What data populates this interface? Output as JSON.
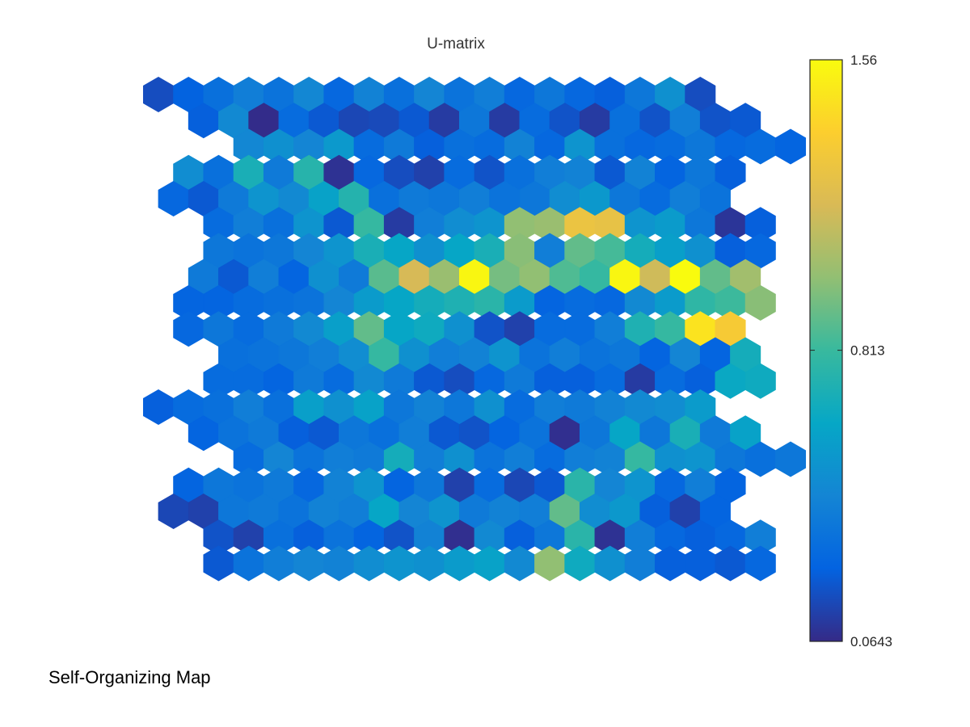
{
  "footer_label": "Self-Organizing Map",
  "chart_data": {
    "type": "heatmap",
    "title": "U-matrix",
    "grid": "hexagonal",
    "rows": 19,
    "cols": 21,
    "colorbar": {
      "colormap": "parula",
      "min": 0.0643,
      "max": 1.56,
      "ticks": [
        0.0643,
        0.813,
        1.56
      ],
      "tick_labels": [
        "0.0643",
        "0.813",
        "1.56"
      ]
    },
    "values": [
      [
        0.18,
        0.25,
        0.32,
        0.4,
        0.34,
        0.45,
        0.28,
        0.42,
        0.32,
        0.44,
        0.34,
        0.4,
        0.28,
        0.36,
        0.28,
        0.24,
        0.36,
        0.5,
        0.18,
        null,
        null
      ],
      [
        null,
        0.24,
        0.46,
        0.07,
        0.3,
        0.22,
        0.16,
        0.17,
        0.22,
        0.12,
        0.36,
        0.12,
        0.3,
        0.2,
        0.12,
        0.32,
        0.2,
        0.4,
        0.2,
        0.22,
        null
      ],
      [
        null,
        null,
        0.45,
        0.5,
        0.44,
        0.55,
        0.3,
        0.38,
        0.24,
        0.32,
        0.3,
        0.42,
        0.28,
        0.52,
        0.32,
        0.28,
        0.3,
        0.36,
        0.28,
        0.3,
        0.26
      ],
      [
        null,
        0.48,
        0.32,
        0.7,
        0.38,
        0.75,
        0.09,
        0.28,
        0.18,
        0.14,
        0.3,
        0.2,
        0.32,
        0.4,
        0.42,
        0.22,
        0.42,
        0.26,
        0.36,
        0.24,
        null
      ],
      [
        0.28,
        0.22,
        0.38,
        0.52,
        0.46,
        0.6,
        0.74,
        0.32,
        0.38,
        0.36,
        0.4,
        0.34,
        0.36,
        0.48,
        0.54,
        0.36,
        0.3,
        0.4,
        0.34,
        null,
        null
      ],
      [
        null,
        0.3,
        0.4,
        0.32,
        0.52,
        0.22,
        0.8,
        0.12,
        0.4,
        0.48,
        0.52,
        1.0,
        1.02,
        1.28,
        1.26,
        0.52,
        0.56,
        0.36,
        0.1,
        0.24,
        null
      ],
      [
        null,
        null,
        0.36,
        0.34,
        0.36,
        0.44,
        0.52,
        0.7,
        0.62,
        0.5,
        0.62,
        0.7,
        0.98,
        0.4,
        0.9,
        0.84,
        0.68,
        0.58,
        0.5,
        0.24,
        0.28
      ],
      [
        null,
        0.38,
        0.22,
        0.4,
        0.26,
        0.5,
        0.38,
        0.88,
        1.18,
        1.02,
        1.54,
        0.94,
        1.0,
        0.86,
        0.8,
        1.54,
        1.16,
        1.56,
        0.9,
        1.04,
        null
      ],
      [
        0.26,
        0.26,
        0.3,
        0.32,
        0.34,
        0.44,
        0.56,
        0.62,
        0.68,
        0.72,
        0.76,
        0.56,
        0.26,
        0.3,
        0.28,
        0.46,
        0.56,
        0.78,
        0.82,
        0.98,
        null
      ],
      [
        null,
        0.28,
        0.36,
        0.3,
        0.38,
        0.46,
        0.58,
        0.9,
        0.62,
        0.66,
        0.5,
        0.2,
        0.14,
        0.3,
        0.3,
        0.4,
        0.72,
        0.8,
        1.46,
        1.34,
        null
      ],
      [
        null,
        null,
        0.32,
        0.34,
        0.36,
        0.4,
        0.48,
        0.8,
        0.5,
        0.4,
        0.42,
        0.52,
        0.34,
        0.4,
        0.34,
        0.36,
        0.26,
        0.44,
        0.26,
        0.68,
        null
      ],
      [
        null,
        0.3,
        0.3,
        0.26,
        0.38,
        0.3,
        0.46,
        0.38,
        0.22,
        0.18,
        0.28,
        0.38,
        0.24,
        0.24,
        0.3,
        0.12,
        0.3,
        0.24,
        0.64,
        0.66,
        null
      ],
      [
        0.24,
        0.3,
        0.32,
        0.4,
        0.32,
        0.58,
        0.5,
        0.6,
        0.36,
        0.42,
        0.36,
        0.5,
        0.3,
        0.4,
        0.38,
        0.42,
        0.46,
        0.48,
        0.56,
        null,
        null
      ],
      [
        null,
        0.26,
        0.34,
        0.38,
        0.24,
        0.22,
        0.36,
        0.32,
        0.4,
        0.22,
        0.2,
        0.26,
        0.34,
        0.08,
        0.36,
        0.62,
        0.36,
        0.7,
        0.38,
        0.6,
        null
      ],
      [
        null,
        null,
        0.3,
        0.44,
        0.34,
        0.4,
        0.38,
        0.68,
        0.4,
        0.5,
        0.34,
        0.4,
        0.3,
        0.4,
        0.42,
        0.8,
        0.5,
        0.52,
        0.36,
        0.32,
        0.36
      ],
      [
        null,
        0.26,
        0.36,
        0.34,
        0.38,
        0.28,
        0.42,
        0.52,
        0.26,
        0.36,
        0.14,
        0.3,
        0.16,
        0.22,
        0.76,
        0.44,
        0.52,
        0.28,
        0.4,
        0.26,
        null
      ],
      [
        0.16,
        0.14,
        0.36,
        0.38,
        0.34,
        0.42,
        0.4,
        0.62,
        0.44,
        0.52,
        0.38,
        0.42,
        0.4,
        0.9,
        0.48,
        0.54,
        0.24,
        0.14,
        0.26,
        null,
        null
      ],
      [
        null,
        0.2,
        0.14,
        0.32,
        0.24,
        0.34,
        0.26,
        0.2,
        0.42,
        0.08,
        0.46,
        0.24,
        0.36,
        0.76,
        0.09,
        0.4,
        0.28,
        0.24,
        0.28,
        0.4,
        null
      ],
      [
        null,
        null,
        0.22,
        0.34,
        0.4,
        0.44,
        0.42,
        0.48,
        0.52,
        0.5,
        0.56,
        0.6,
        0.46,
        1.0,
        0.66,
        0.5,
        0.4,
        0.24,
        0.24,
        0.22,
        0.28
      ]
    ]
  }
}
